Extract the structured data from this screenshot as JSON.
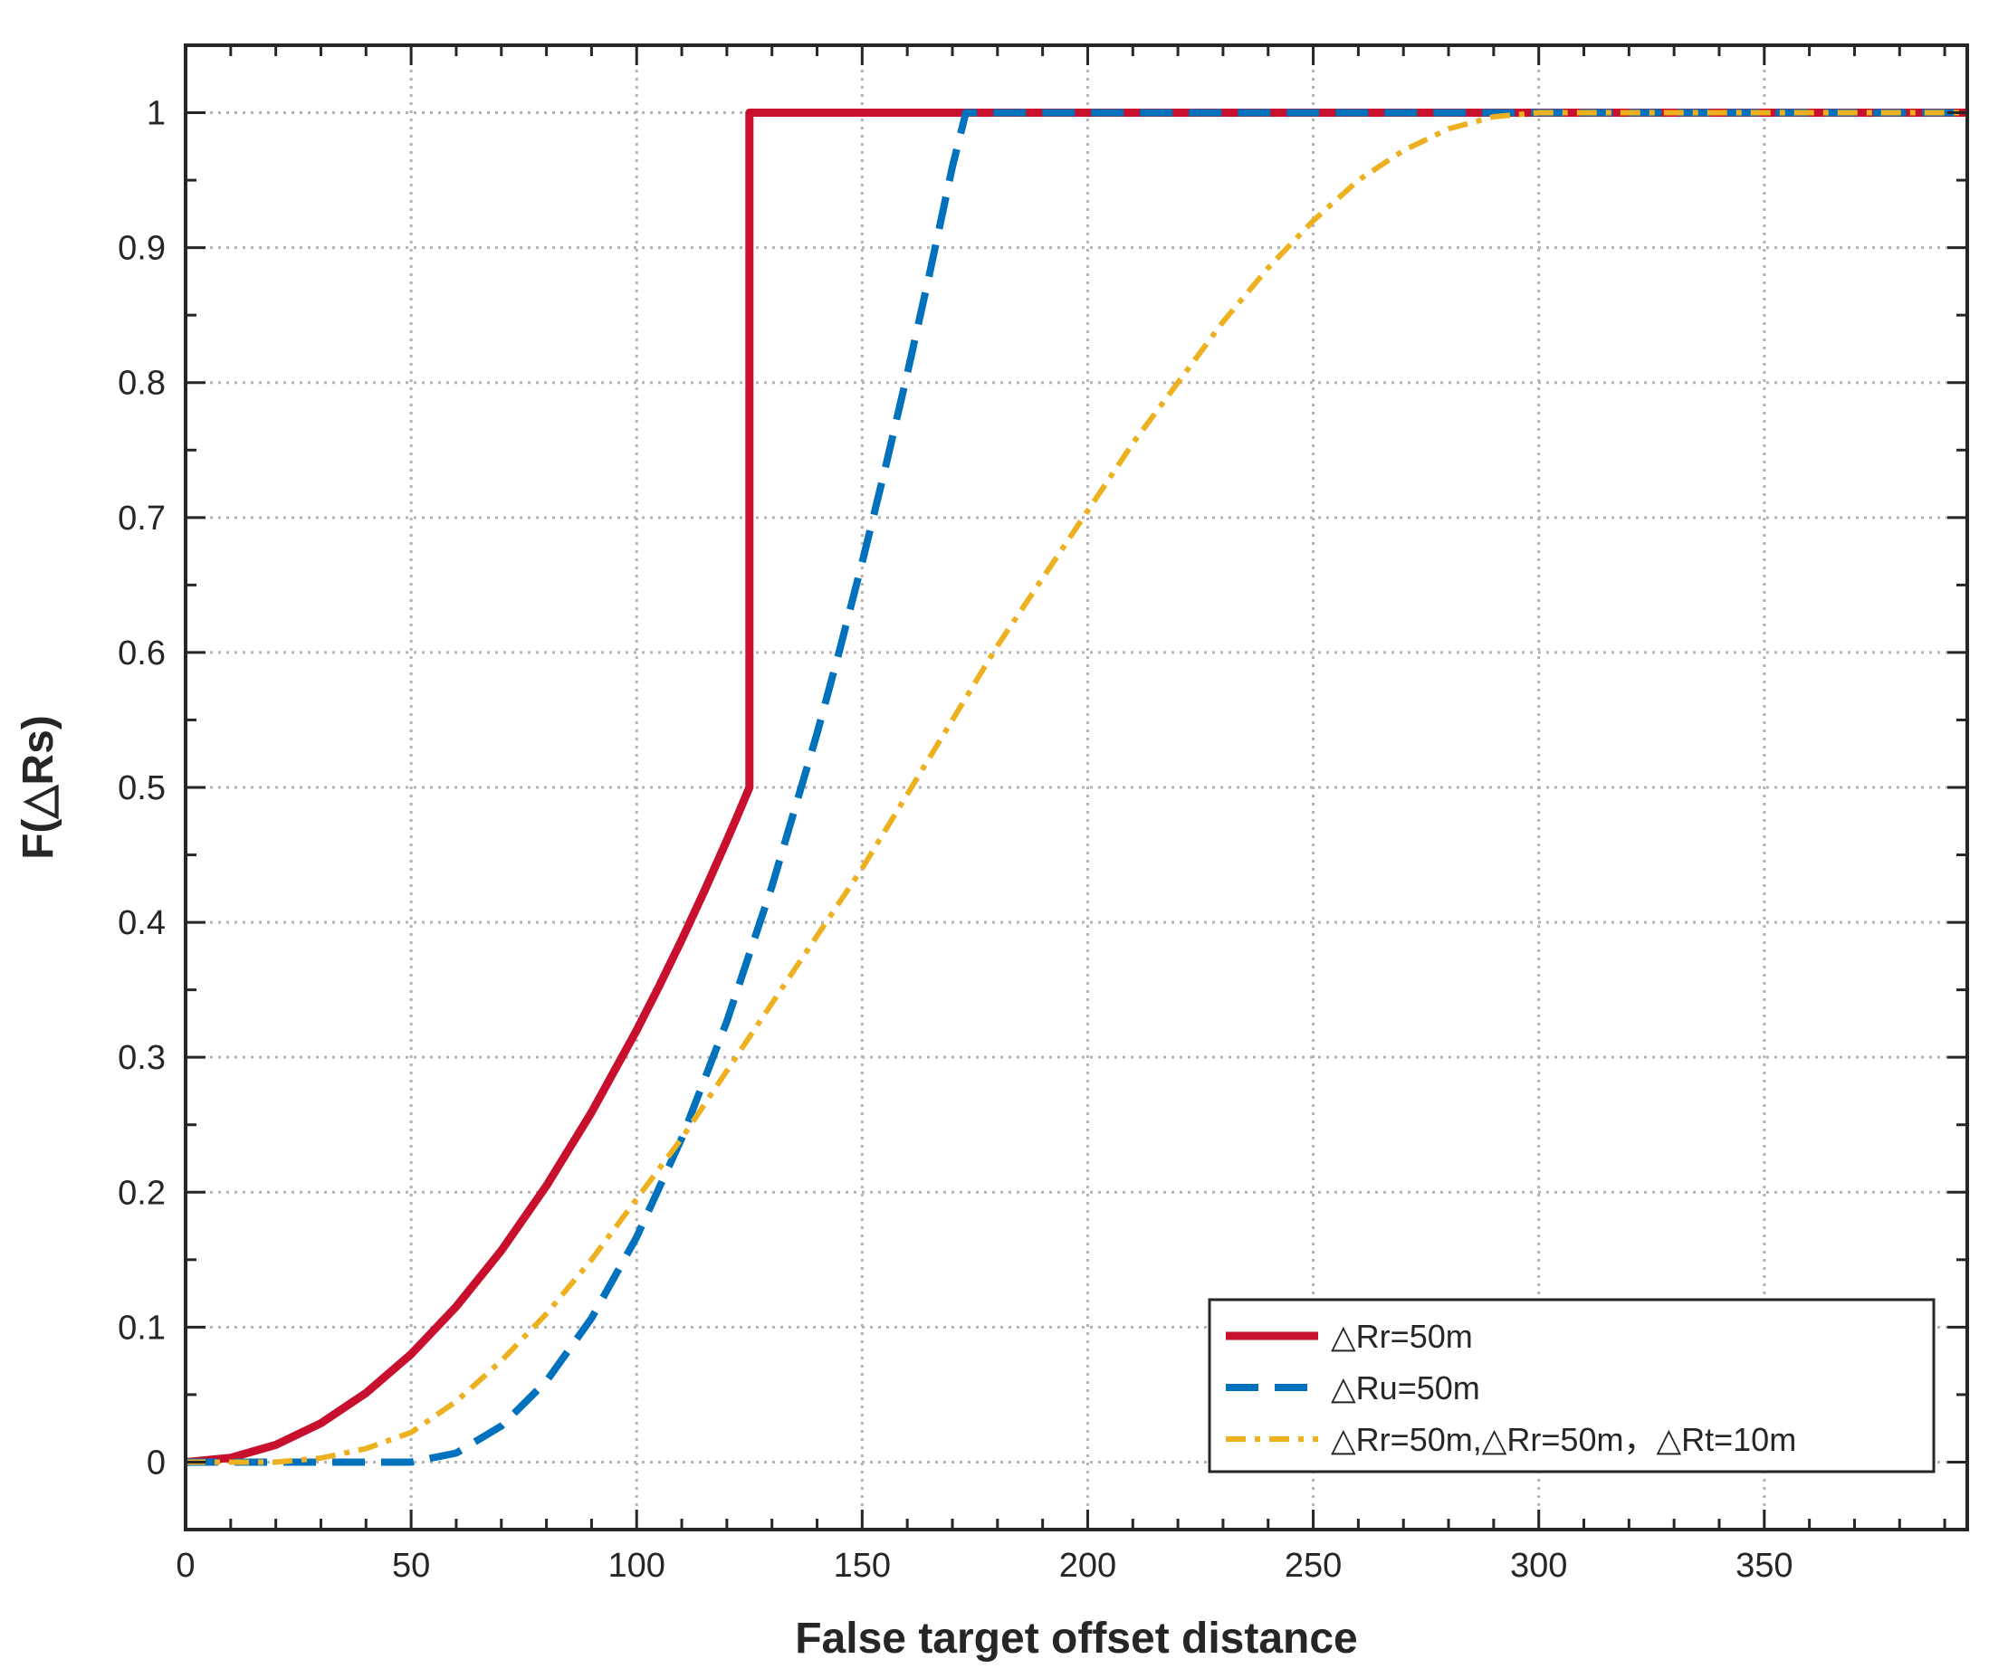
{
  "chart_data": {
    "type": "line",
    "title": "",
    "xlabel": "False target offset distance",
    "ylabel": "F(△Rs)",
    "xlim": [
      0,
      395
    ],
    "ylim": [
      -0.05,
      1.05
    ],
    "xticks": [
      0,
      50,
      100,
      150,
      200,
      250,
      300,
      350
    ],
    "xtick_labels": [
      "0",
      "50",
      "100",
      "150",
      "200",
      "250",
      "300",
      "350"
    ],
    "yticks": [
      0,
      0.1,
      0.2,
      0.3,
      0.4,
      0.5,
      0.6,
      0.7,
      0.8,
      0.9,
      1
    ],
    "ytick_labels": [
      "0",
      "0.1",
      "0.2",
      "0.3",
      "0.4",
      "0.5",
      "0.6",
      "0.7",
      "0.8",
      "0.9",
      "1"
    ],
    "grid": true,
    "legend_position": "bottom-right",
    "series": [
      {
        "name": "△Rr=50m",
        "color": "#C8102E",
        "style": "solid",
        "x": [
          0,
          10,
          20,
          30,
          40,
          50,
          60,
          70,
          80,
          90,
          100,
          105,
          110,
          115,
          120,
          122,
          124,
          125,
          125.01,
          395
        ],
        "y": [
          0,
          0.0032,
          0.0128,
          0.0288,
          0.0512,
          0.08,
          0.1152,
          0.1568,
          0.2048,
          0.2592,
          0.32,
          0.3528,
          0.3872,
          0.4232,
          0.4608,
          0.4761,
          0.492,
          0.5,
          1,
          1
        ]
      },
      {
        "name": "△Ru=50m",
        "color": "#0072BD",
        "style": "dashed",
        "x": [
          0,
          50,
          60,
          70,
          80,
          90,
          100,
          110,
          120,
          130,
          140,
          145,
          150,
          155,
          160,
          165,
          170,
          173,
          175,
          175.01,
          395
        ],
        "y": [
          0,
          0,
          0.0067,
          0.0267,
          0.06,
          0.1067,
          0.1667,
          0.24,
          0.3267,
          0.4267,
          0.54,
          0.6017,
          0.6667,
          0.735,
          0.8067,
          0.8817,
          0.96,
          1.0,
          1,
          1,
          1
        ]
      },
      {
        "name": "△Rr=50m,△Rr=50m，△Rt=10m",
        "color": "#EDB120",
        "style": "dashdot",
        "x": [
          0,
          20,
          30,
          40,
          50,
          60,
          70,
          80,
          90,
          100,
          110,
          120,
          130,
          140,
          150,
          160,
          170,
          180,
          190,
          200,
          210,
          220,
          230,
          240,
          250,
          260,
          270,
          280,
          290,
          300,
          395
        ],
        "y": [
          0,
          0,
          0.003,
          0.01,
          0.022,
          0.045,
          0.075,
          0.11,
          0.15,
          0.195,
          0.24,
          0.29,
          0.34,
          0.39,
          0.44,
          0.495,
          0.55,
          0.605,
          0.655,
          0.705,
          0.755,
          0.8,
          0.845,
          0.885,
          0.92,
          0.95,
          0.972,
          0.988,
          0.997,
          1,
          1
        ]
      }
    ]
  }
}
